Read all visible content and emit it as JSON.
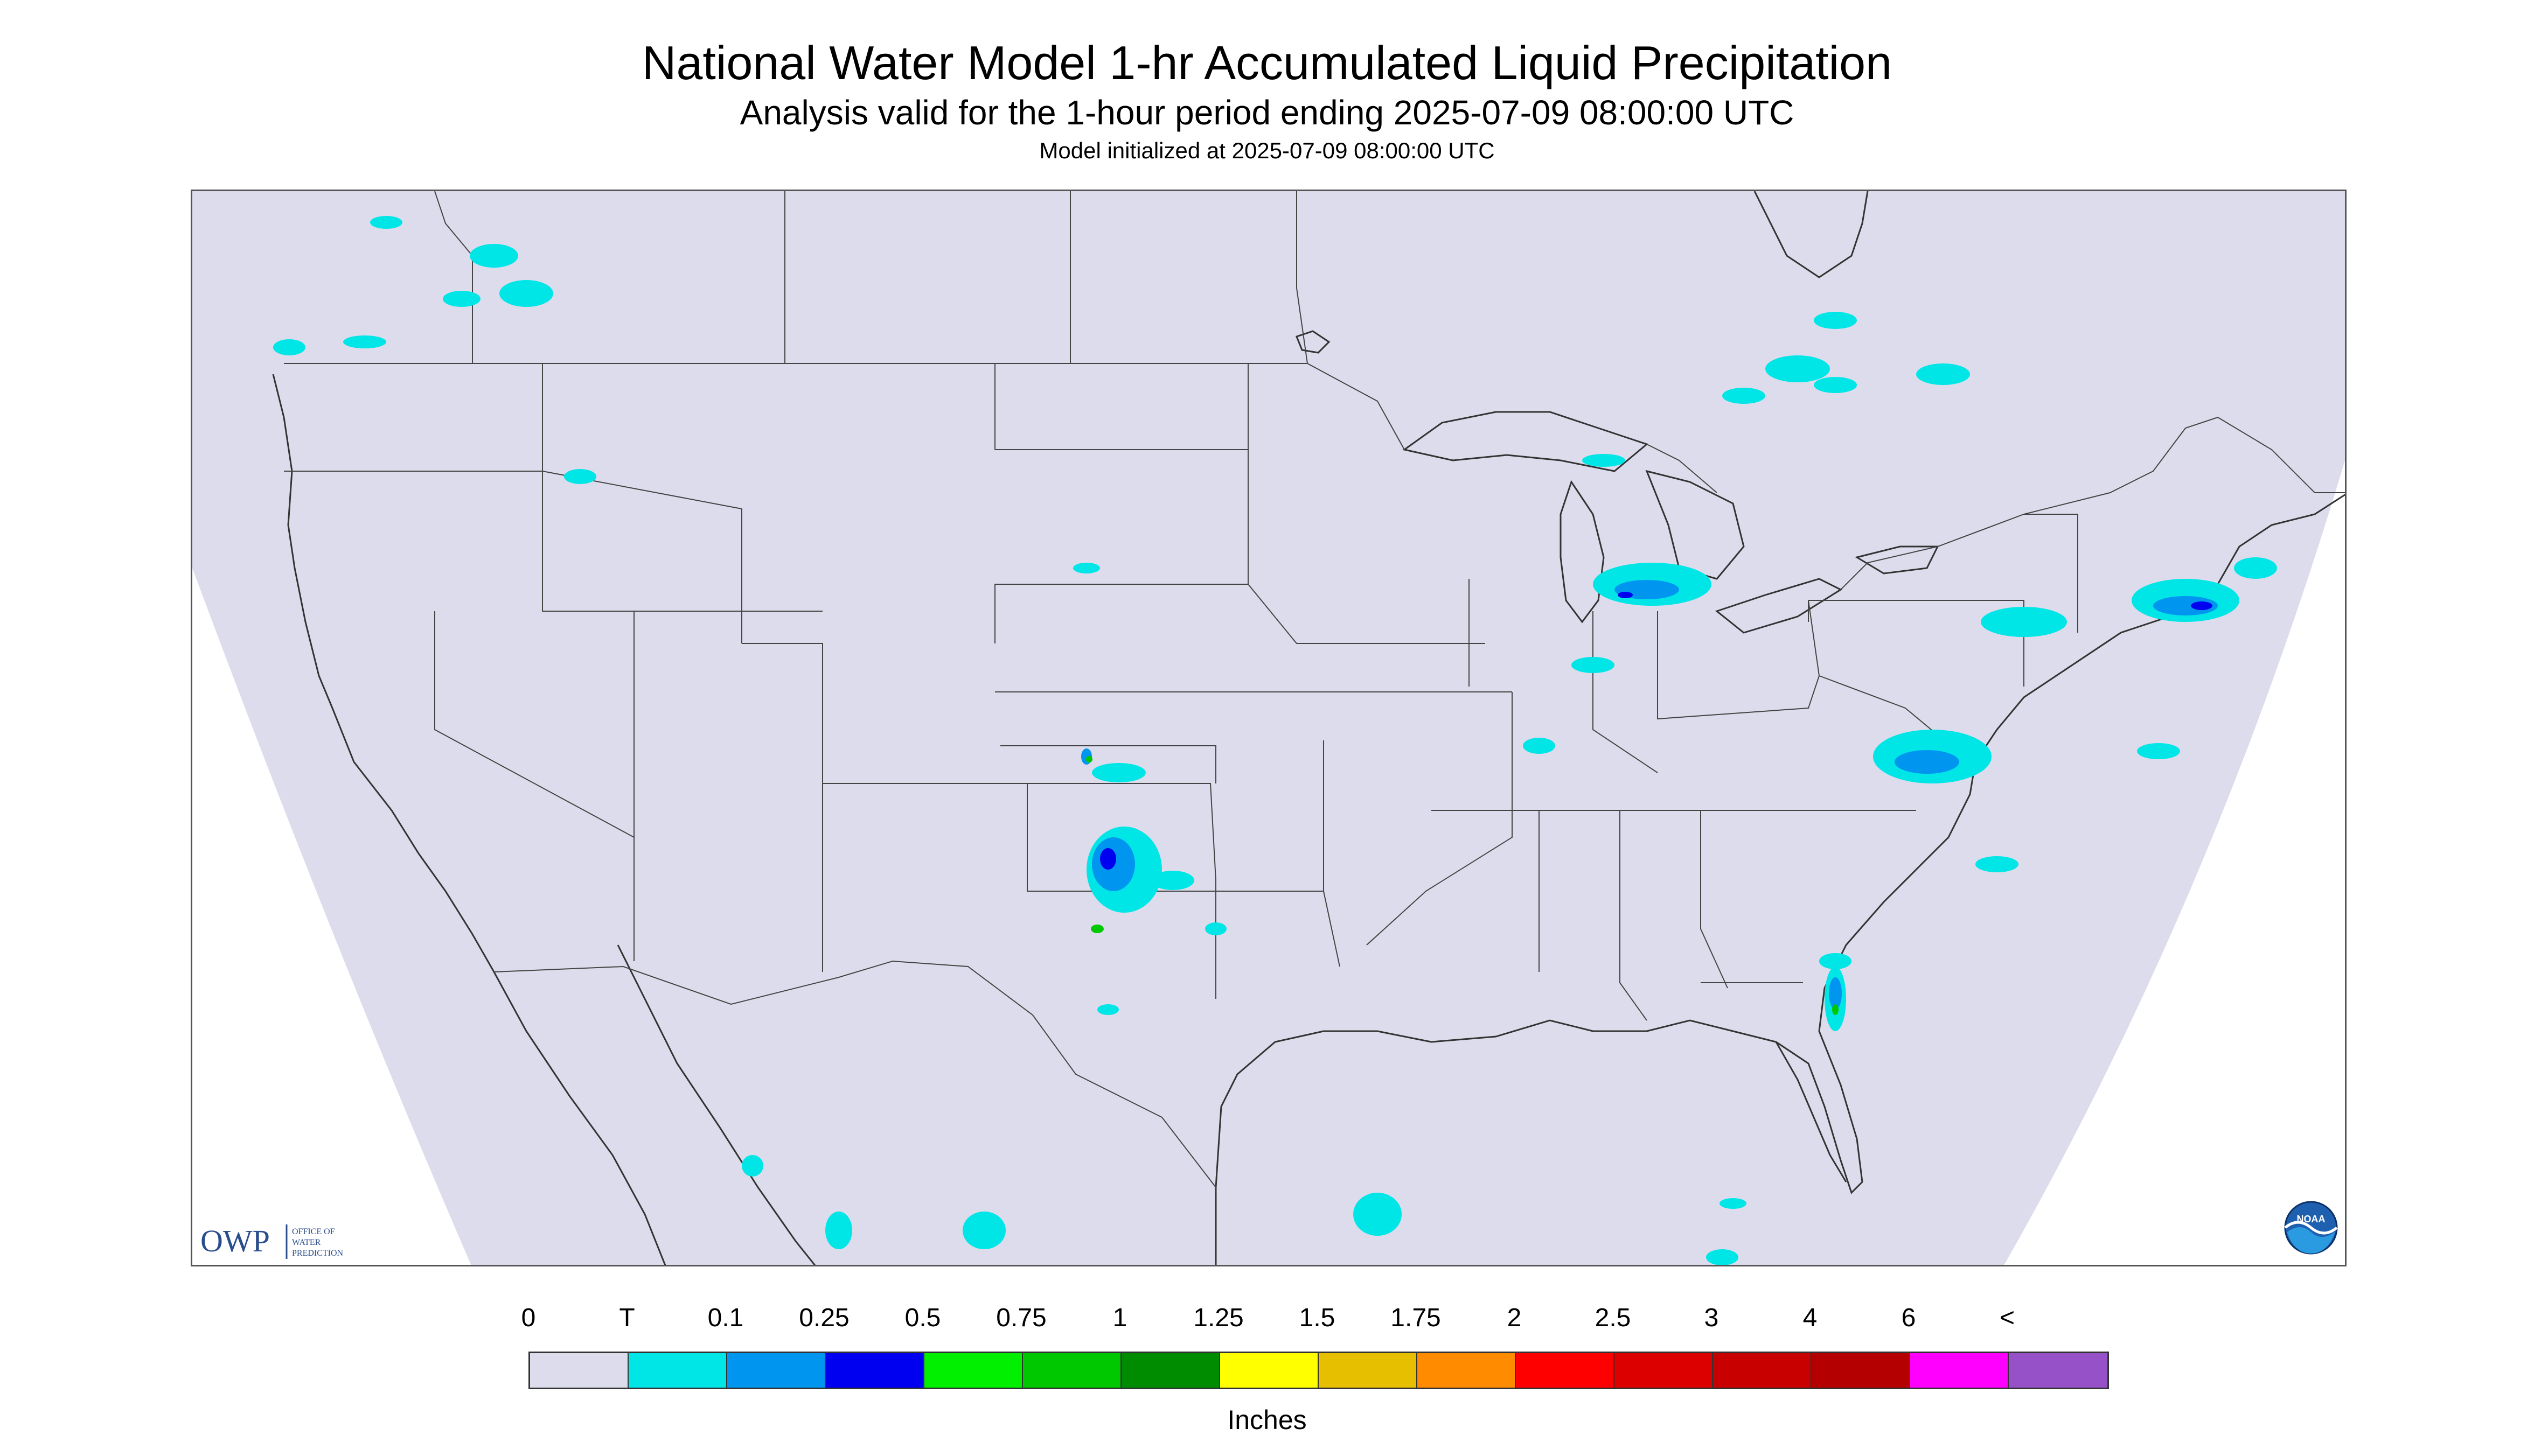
{
  "header": {
    "title": "National Water Model 1-hr Accumulated Liquid Precipitation",
    "subtitle": "Analysis valid for the 1-hour period ending 2025-07-09 08:00:00 UTC",
    "init_line": "Model initialized at 2025-07-09 08:00:00 UTC"
  },
  "map": {
    "region": "Continental United States",
    "background_color": "#dcdcec",
    "outside_domain_color": "#ffffff",
    "boundary_color": "#333333"
  },
  "legend": {
    "units": "Inches",
    "labels": [
      "0",
      "T",
      "0.1",
      "0.25",
      "0.5",
      "0.75",
      "1",
      "1.25",
      "1.5",
      "1.75",
      "2",
      "2.5",
      "3",
      "4",
      "6",
      "<"
    ],
    "colors": [
      "#dcdcec",
      "#00e6e6",
      "#0096f0",
      "#0000f0",
      "#00f000",
      "#00c800",
      "#008c00",
      "#ffff00",
      "#e6bf00",
      "#ff8c00",
      "#ff0000",
      "#dc0000",
      "#c80000",
      "#b40000",
      "#ff00ff",
      "#9650c8"
    ]
  },
  "logos": {
    "owp_mark": "OWP",
    "owp_text": [
      "OFFICE OF",
      "WATER",
      "PREDICTION"
    ],
    "noaa_text": "NOAA"
  }
}
